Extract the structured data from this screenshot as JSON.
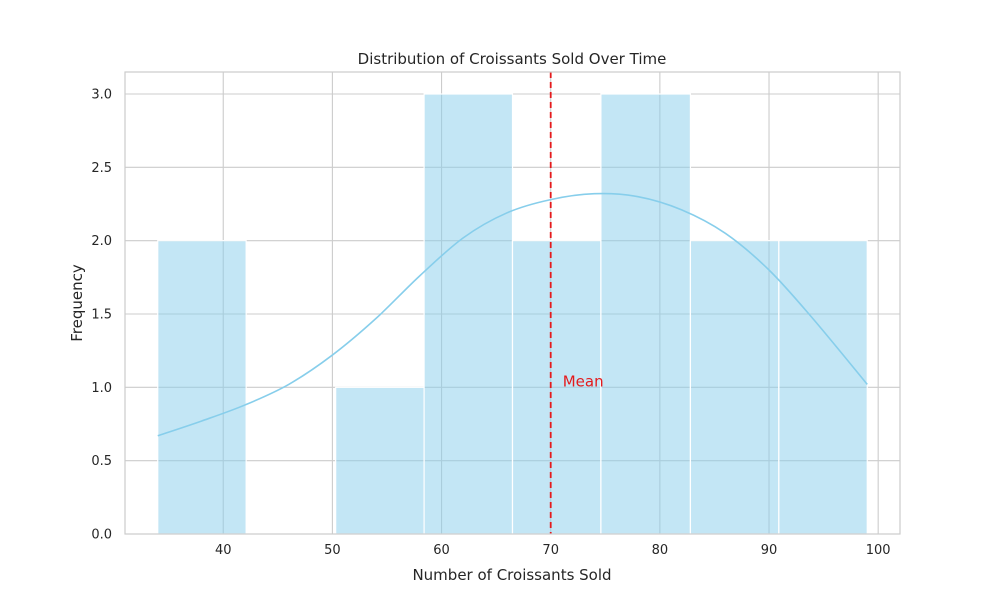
{
  "chart_data": {
    "type": "histogram",
    "title": "Distribution of Croissants Sold Over Time",
    "xlabel": "Number of Croissants Sold",
    "ylabel": "Frequency",
    "xlim": [
      31,
      102
    ],
    "ylim": [
      0,
      3.15
    ],
    "xticks": [
      40,
      50,
      60,
      70,
      80,
      90,
      100
    ],
    "yticks": [
      0.0,
      0.5,
      1.0,
      1.5,
      2.0,
      2.5,
      3.0
    ],
    "grid": true,
    "bins": [
      {
        "start": 34.0,
        "end": 42.1,
        "count": 2
      },
      {
        "start": 42.1,
        "end": 50.3,
        "count": 0
      },
      {
        "start": 50.3,
        "end": 58.4,
        "count": 1
      },
      {
        "start": 58.4,
        "end": 66.5,
        "count": 3
      },
      {
        "start": 66.5,
        "end": 74.6,
        "count": 2
      },
      {
        "start": 74.6,
        "end": 82.8,
        "count": 3
      },
      {
        "start": 82.8,
        "end": 90.9,
        "count": 2
      },
      {
        "start": 90.9,
        "end": 99.0,
        "count": 2
      }
    ],
    "kde": {
      "x": [
        34,
        38,
        42,
        46,
        50,
        54,
        58,
        62,
        66,
        70,
        74,
        78,
        82,
        86,
        90,
        94,
        99
      ],
      "y": [
        0.67,
        0.77,
        0.88,
        1.02,
        1.22,
        1.47,
        1.76,
        2.02,
        2.19,
        2.28,
        2.32,
        2.3,
        2.21,
        2.05,
        1.8,
        1.47,
        1.02
      ]
    },
    "mean_line": {
      "x": 70,
      "label": "Mean",
      "label_y": 1.0
    },
    "colors": {
      "bar_fill": "#87ceeb",
      "bar_edge": "#ffffff",
      "kde": "#87ceeb",
      "mean": "#e41a1c",
      "grid": "#cccccc",
      "frame": "#cccccc"
    }
  }
}
